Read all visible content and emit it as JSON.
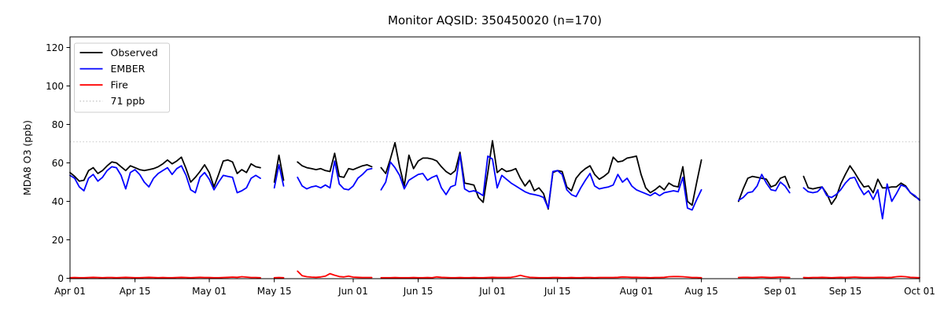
{
  "chart_data": {
    "type": "line",
    "title": "Monitor AQSID: 350450020 (n=170)",
    "xlabel": "",
    "ylabel": "MDA8 O3 (ppb)",
    "ylim": [
      0,
      125
    ],
    "yticks": [
      0,
      20,
      40,
      60,
      80,
      100,
      120
    ],
    "x_range_days": 183,
    "x_ticks": [
      {
        "label": "Apr 01",
        "day": 0
      },
      {
        "label": "Apr 15",
        "day": 14
      },
      {
        "label": "May 01",
        "day": 30
      },
      {
        "label": "May 15",
        "day": 44
      },
      {
        "label": "Jun 01",
        "day": 61
      },
      {
        "label": "Jun 15",
        "day": 75
      },
      {
        "label": "Jul 01",
        "day": 91
      },
      {
        "label": "Jul 15",
        "day": 105
      },
      {
        "label": "Aug 01",
        "day": 122
      },
      {
        "label": "Aug 15",
        "day": 136
      },
      {
        "label": "Sep 01",
        "day": 153
      },
      {
        "label": "Sep 15",
        "day": 167
      },
      {
        "label": "Oct 01",
        "day": 183
      }
    ],
    "grid": false,
    "threshold": {
      "value": 71,
      "label": "71 ppb",
      "color": "#d3d3d3",
      "style": "dotted"
    },
    "legend": {
      "position": "upper-left",
      "entries": [
        {
          "label": "Observed",
          "color": "#000000",
          "dash": ""
        },
        {
          "label": "EMBER",
          "color": "#0000ff",
          "dash": ""
        },
        {
          "label": "Fire",
          "color": "#ff0000",
          "dash": ""
        },
        {
          "label": "71 ppb",
          "color": "#d3d3d3",
          "dash": "1.5 2.6"
        }
      ]
    },
    "series": [
      {
        "name": "Observed",
        "color": "#000000",
        "values": [
          55,
          53,
          50.5,
          51,
          56,
          57.5,
          54.5,
          56,
          58.5,
          60.5,
          60,
          58,
          56,
          58.5,
          57.5,
          56.5,
          56,
          56.5,
          57,
          58,
          59.5,
          61.5,
          59.5,
          61,
          63,
          57,
          50,
          52.5,
          55.5,
          59,
          55,
          47.5,
          54,
          61,
          61.5,
          60.5,
          54.5,
          56.5,
          55,
          59.5,
          58,
          57.5,
          null,
          null,
          50,
          64,
          51,
          null,
          null,
          60.5,
          58.5,
          57.5,
          57,
          56.5,
          57,
          56,
          55.5,
          65,
          53,
          52.5,
          57,
          56.5,
          57.5,
          58.5,
          59,
          58,
          null,
          57.5,
          54.5,
          62,
          70.5,
          58,
          48,
          64,
          57,
          61,
          62.5,
          62.5,
          62,
          61,
          58,
          55.5,
          54,
          56,
          65.5,
          49.5,
          49,
          48.5,
          42,
          39.5,
          55,
          71.5,
          55,
          57,
          55.5,
          56,
          57,
          52,
          48,
          51,
          45.5,
          47,
          44,
          36,
          55,
          56,
          55.5,
          47.5,
          45.5,
          52,
          55,
          57,
          58.5,
          54,
          51.5,
          53,
          55,
          63,
          60.5,
          61,
          62.5,
          63,
          63.5,
          54,
          47,
          44.5,
          46,
          48,
          46,
          49.5,
          48,
          47.5,
          58,
          40,
          38,
          50,
          61.5,
          null,
          null,
          null,
          null,
          null,
          null,
          null,
          40,
          46.5,
          52,
          53,
          52.5,
          52,
          51.5,
          47.5,
          48.5,
          52,
          53,
          47,
          null,
          null,
          53,
          47,
          46.5,
          47,
          47.5,
          44,
          38.5,
          42,
          49,
          54,
          58.5,
          55,
          51,
          47.5,
          48,
          44.5,
          51.5,
          47,
          47,
          47.5,
          47.5,
          49.5,
          48,
          44.5,
          42.5,
          41
        ]
      },
      {
        "name": "EMBER",
        "color": "#0000ff",
        "values": [
          53.5,
          52,
          47.5,
          45.5,
          52,
          54,
          50.5,
          52.5,
          56,
          58,
          57.5,
          53.5,
          46.5,
          55,
          56.5,
          54,
          50,
          47.5,
          52,
          54.5,
          56,
          57.5,
          54,
          57,
          58.5,
          53.5,
          46,
          44.5,
          52.5,
          55,
          51.5,
          46,
          50,
          53.5,
          53,
          52.5,
          44.5,
          45.5,
          47,
          52,
          53.5,
          52,
          null,
          null,
          47,
          59,
          48,
          null,
          null,
          52.5,
          48,
          46.5,
          47.5,
          48,
          47,
          48.5,
          47,
          61,
          49,
          46.5,
          46,
          48,
          52,
          54,
          56.5,
          57,
          null,
          46,
          50,
          60.5,
          57.5,
          53.5,
          46.5,
          51,
          52.5,
          54,
          54.5,
          51,
          52.5,
          53.5,
          47,
          43.5,
          47.5,
          48.5,
          64.5,
          46.5,
          45,
          45.5,
          44.5,
          43,
          63.5,
          62,
          47,
          53.5,
          51.5,
          49.5,
          48,
          46.5,
          45,
          44,
          43.5,
          43,
          42,
          36.5,
          55.5,
          56,
          54,
          46,
          43.5,
          42.5,
          47,
          51,
          54.5,
          48,
          46.5,
          47,
          47.5,
          48.5,
          54,
          50,
          52,
          48,
          46,
          45,
          44,
          43,
          44.5,
          43,
          44.5,
          45,
          45.5,
          45,
          52.5,
          36.5,
          35.5,
          41,
          46,
          null,
          null,
          null,
          null,
          null,
          null,
          null,
          40.5,
          42,
          44.5,
          45,
          48,
          54,
          49.5,
          46,
          45.5,
          50,
          48,
          44.5,
          null,
          null,
          47,
          45,
          44.5,
          45,
          47.5,
          43,
          42,
          43.5,
          46,
          49.5,
          52,
          52.5,
          47.5,
          43.5,
          45.5,
          41,
          46,
          31,
          49,
          40,
          44,
          48.5,
          47.5,
          44.5,
          43,
          40.5
        ]
      },
      {
        "name": "Fire",
        "color": "#ff0000",
        "values": [
          0.3,
          0.4,
          0.3,
          0.3,
          0.4,
          0.5,
          0.4,
          0.3,
          0.4,
          0.4,
          0.3,
          0.4,
          0.5,
          0.4,
          0.3,
          0.3,
          0.4,
          0.5,
          0.4,
          0.3,
          0.4,
          0.3,
          0.3,
          0.4,
          0.5,
          0.4,
          0.3,
          0.4,
          0.5,
          0.4,
          0.4,
          0.3,
          0.3,
          0.4,
          0.5,
          0.6,
          0.5,
          0.8,
          0.6,
          0.4,
          0.4,
          0.3,
          null,
          null,
          0.3,
          0.4,
          0.3,
          null,
          null,
          3.7,
          1.3,
          0.8,
          0.6,
          0.5,
          0.7,
          1.1,
          2.4,
          1.6,
          0.9,
          0.7,
          1.1,
          0.6,
          0.5,
          0.4,
          0.4,
          0.4,
          null,
          0.3,
          0.3,
          0.3,
          0.4,
          0.3,
          0.3,
          0.3,
          0.4,
          0.3,
          0.3,
          0.4,
          0.3,
          0.7,
          0.5,
          0.4,
          0.3,
          0.3,
          0.4,
          0.3,
          0.3,
          0.4,
          0.3,
          0.3,
          0.4,
          0.5,
          0.4,
          0.4,
          0.4,
          0.5,
          0.9,
          1.5,
          0.9,
          0.5,
          0.4,
          0.3,
          0.3,
          0.3,
          0.4,
          0.4,
          0.3,
          0.3,
          0.4,
          0.3,
          0.3,
          0.4,
          0.4,
          0.3,
          0.4,
          0.4,
          0.4,
          0.4,
          0.5,
          0.7,
          0.6,
          0.5,
          0.5,
          0.4,
          0.4,
          0.3,
          0.4,
          0.4,
          0.5,
          0.8,
          0.9,
          0.9,
          0.8,
          0.6,
          0.4,
          0.4,
          0.3,
          null,
          null,
          null,
          null,
          null,
          null,
          null,
          0.4,
          0.5,
          0.5,
          0.4,
          0.5,
          0.6,
          0.5,
          0.4,
          0.5,
          0.6,
          0.5,
          0.4,
          null,
          null,
          0.4,
          0.3,
          0.4,
          0.4,
          0.5,
          0.4,
          0.3,
          0.4,
          0.5,
          0.4,
          0.5,
          0.6,
          0.5,
          0.4,
          0.4,
          0.4,
          0.5,
          0.5,
          0.4,
          0.5,
          0.8,
          1.0,
          0.8,
          0.5,
          0.4,
          0.3
        ]
      }
    ]
  }
}
